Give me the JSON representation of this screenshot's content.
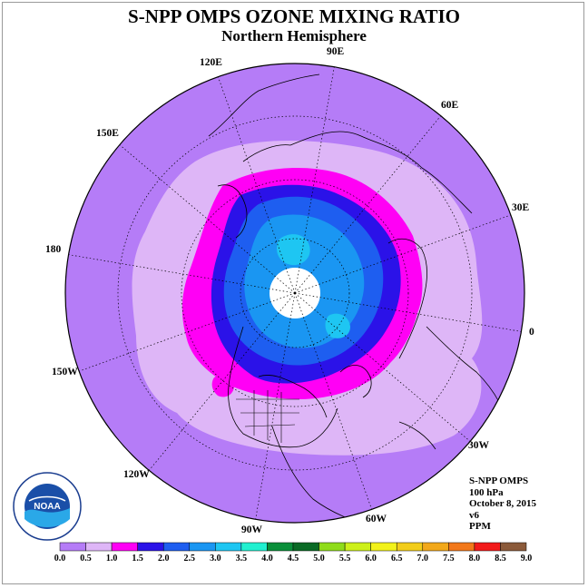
{
  "title": "S-NPP OMPS OZONE MIXING RATIO",
  "subtitle": "Northern Hemisphere",
  "longitude_labels": [
    "90E",
    "60E",
    "30E",
    "0",
    "30W",
    "60W",
    "90W",
    "120W",
    "150W",
    "180",
    "150E",
    "120E"
  ],
  "info": {
    "instrument": "S-NPP OMPS",
    "level": "100 hPa",
    "date": "October 8, 2015",
    "version": "v6",
    "units": "PPM"
  },
  "logo": {
    "text": "NOAA"
  },
  "colorbar": {
    "ticks": [
      "0.0",
      "0.5",
      "1.0",
      "1.5",
      "2.0",
      "2.5",
      "3.0",
      "3.5",
      "4.0",
      "4.5",
      "5.0",
      "5.5",
      "6.0",
      "6.5",
      "7.0",
      "7.5",
      "8.0",
      "8.5",
      "9.0"
    ],
    "colors": [
      "#b57cf7",
      "#deb6f7",
      "#ff00f5",
      "#2b12e8",
      "#1e5ef0",
      "#1a96f2",
      "#1ec6f2",
      "#21f0d0",
      "#0a8f3a",
      "#0a6a25",
      "#8fdc1a",
      "#cdf01a",
      "#f2f21a",
      "#f2cd1a",
      "#f2a81a",
      "#f2781a",
      "#f21a1a",
      "#8b5a3a"
    ]
  },
  "map_data": {
    "projection": "north-polar-stereographic",
    "outer_value_ppm": "0.0-0.5",
    "polar_no_data": true,
    "zones_ppm": [
      "0.5-1.0",
      "1.0-1.5",
      "1.5-2.0",
      "2.0-2.5",
      "2.5-3.0"
    ]
  }
}
